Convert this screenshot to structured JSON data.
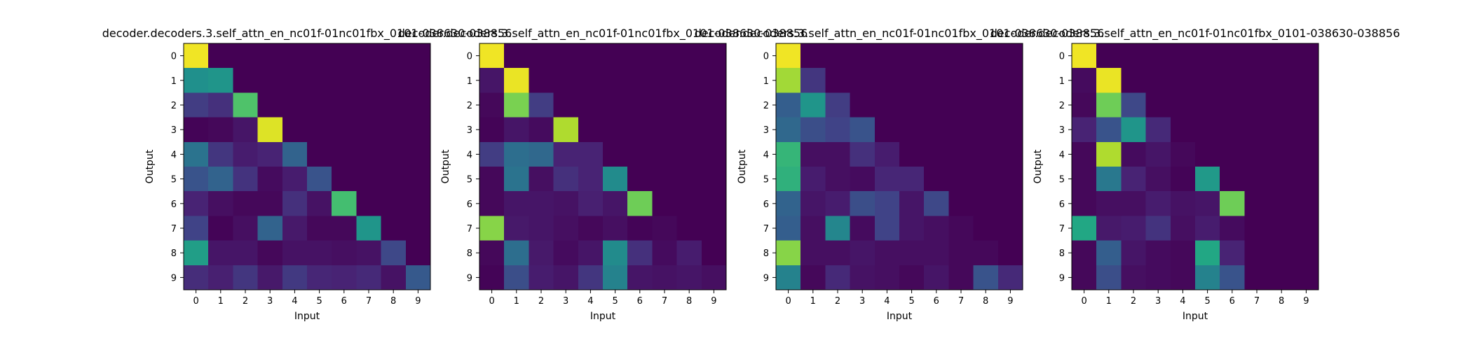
{
  "figure": {
    "background": "#ffffff"
  },
  "chart_data": [
    {
      "type": "heatmap",
      "title": "decoder.decoders.3.self_attn_en_nc01f-01nc01fbx_0101-038630-038856",
      "xlabel": "Input",
      "ylabel": "Output",
      "x_ticks": [
        "0",
        "1",
        "2",
        "3",
        "4",
        "5",
        "6",
        "7",
        "8",
        "9"
      ],
      "y_ticks": [
        "0",
        "1",
        "2",
        "3",
        "4",
        "5",
        "6",
        "7",
        "8",
        "9"
      ],
      "colormap": "viridis",
      "values": [
        [
          0.98,
          0,
          0,
          0,
          0,
          0,
          0,
          0,
          0,
          0
        ],
        [
          0.5,
          0.52,
          0,
          0,
          0,
          0,
          0,
          0,
          0,
          0
        ],
        [
          0.18,
          0.14,
          0.72,
          0,
          0,
          0,
          0,
          0,
          0,
          0
        ],
        [
          0.01,
          0.02,
          0.06,
          0.95,
          0,
          0,
          0,
          0,
          0,
          0
        ],
        [
          0.38,
          0.16,
          0.08,
          0.1,
          0.32,
          0,
          0,
          0,
          0,
          0
        ],
        [
          0.26,
          0.32,
          0.15,
          0.03,
          0.08,
          0.26,
          0,
          0,
          0,
          0
        ],
        [
          0.1,
          0.04,
          0.02,
          0.02,
          0.14,
          0.05,
          0.7,
          0,
          0,
          0
        ],
        [
          0.2,
          0.01,
          0.04,
          0.32,
          0.07,
          0.02,
          0.02,
          0.52,
          0,
          0
        ],
        [
          0.56,
          0.06,
          0.06,
          0.02,
          0.05,
          0.05,
          0.04,
          0.05,
          0.22,
          0
        ],
        [
          0.13,
          0.09,
          0.16,
          0.07,
          0.17,
          0.11,
          0.1,
          0.12,
          0.05,
          0.28
        ]
      ]
    },
    {
      "type": "heatmap",
      "title": "decoder.decoders.3.self_attn_en_nc01f-01nc01fbx_0101-038630-038856",
      "xlabel": "Input",
      "ylabel": "Output",
      "x_ticks": [
        "0",
        "1",
        "2",
        "3",
        "4",
        "5",
        "6",
        "7",
        "8",
        "9"
      ],
      "y_ticks": [
        "0",
        "1",
        "2",
        "3",
        "4",
        "5",
        "6",
        "7",
        "8",
        "9"
      ],
      "colormap": "viridis",
      "values": [
        [
          0.98,
          0,
          0,
          0,
          0,
          0,
          0,
          0,
          0,
          0
        ],
        [
          0.06,
          0.97,
          0,
          0,
          0,
          0,
          0,
          0,
          0,
          0
        ],
        [
          0.02,
          0.8,
          0.18,
          0,
          0,
          0,
          0,
          0,
          0,
          0
        ],
        [
          0.01,
          0.06,
          0.03,
          0.88,
          0,
          0,
          0,
          0,
          0,
          0
        ],
        [
          0.18,
          0.36,
          0.34,
          0.1,
          0.1,
          0,
          0,
          0,
          0,
          0
        ],
        [
          0.02,
          0.38,
          0.04,
          0.14,
          0.1,
          0.48,
          0,
          0,
          0,
          0
        ],
        [
          0.02,
          0.06,
          0.06,
          0.05,
          0.09,
          0.06,
          0.78,
          0,
          0,
          0
        ],
        [
          0.82,
          0.07,
          0.06,
          0.04,
          0.02,
          0.04,
          0.01,
          0.02,
          0,
          0
        ],
        [
          0.02,
          0.36,
          0.07,
          0.03,
          0.06,
          0.48,
          0.14,
          0.03,
          0.08,
          0
        ],
        [
          0.01,
          0.24,
          0.08,
          0.06,
          0.16,
          0.44,
          0.06,
          0.05,
          0.06,
          0.04
        ]
      ]
    },
    {
      "type": "heatmap",
      "title": "decoder.decoders.3.self_attn_en_nc01f-01nc01fbx_0101-038630-038856",
      "xlabel": "Input",
      "ylabel": "Output",
      "x_ticks": [
        "0",
        "1",
        "2",
        "3",
        "4",
        "5",
        "6",
        "7",
        "8",
        "9"
      ],
      "y_ticks": [
        "0",
        "1",
        "2",
        "3",
        "4",
        "5",
        "6",
        "7",
        "8",
        "9"
      ],
      "colormap": "viridis",
      "values": [
        [
          0.98,
          0,
          0,
          0,
          0,
          0,
          0,
          0,
          0,
          0
        ],
        [
          0.86,
          0.16,
          0,
          0,
          0,
          0,
          0,
          0,
          0,
          0
        ],
        [
          0.3,
          0.52,
          0.18,
          0,
          0,
          0,
          0,
          0,
          0,
          0
        ],
        [
          0.34,
          0.24,
          0.2,
          0.26,
          0,
          0,
          0,
          0,
          0,
          0
        ],
        [
          0.66,
          0.04,
          0.04,
          0.14,
          0.08,
          0,
          0,
          0,
          0,
          0
        ],
        [
          0.64,
          0.08,
          0.04,
          0.03,
          0.11,
          0.11,
          0,
          0,
          0,
          0
        ],
        [
          0.32,
          0.06,
          0.08,
          0.24,
          0.2,
          0.06,
          0.22,
          0,
          0,
          0
        ],
        [
          0.3,
          0.04,
          0.46,
          0.03,
          0.2,
          0.06,
          0.04,
          0.02,
          0,
          0
        ],
        [
          0.82,
          0.04,
          0.04,
          0.06,
          0.04,
          0.04,
          0.04,
          0.02,
          0.02,
          0
        ],
        [
          0.44,
          0.02,
          0.12,
          0.05,
          0.04,
          0.02,
          0.06,
          0.02,
          0.26,
          0.12
        ]
      ]
    },
    {
      "type": "heatmap",
      "title": "decoder.decoders.3.self_attn_en_nc01f-01nc01fbx_0101-038630-038856",
      "xlabel": "Input",
      "ylabel": "Output",
      "x_ticks": [
        "0",
        "1",
        "2",
        "3",
        "4",
        "5",
        "6",
        "7",
        "8",
        "9"
      ],
      "y_ticks": [
        "0",
        "1",
        "2",
        "3",
        "4",
        "5",
        "6",
        "7",
        "8",
        "9"
      ],
      "colormap": "viridis",
      "values": [
        [
          0.98,
          0,
          0,
          0,
          0,
          0,
          0,
          0,
          0,
          0
        ],
        [
          0.03,
          0.97,
          0,
          0,
          0,
          0,
          0,
          0,
          0,
          0
        ],
        [
          0.02,
          0.78,
          0.22,
          0,
          0,
          0,
          0,
          0,
          0,
          0
        ],
        [
          0.1,
          0.26,
          0.52,
          0.12,
          0,
          0,
          0,
          0,
          0,
          0
        ],
        [
          0.02,
          0.88,
          0.03,
          0.06,
          0.02,
          0,
          0,
          0,
          0,
          0
        ],
        [
          0.02,
          0.4,
          0.1,
          0.04,
          0.01,
          0.54,
          0,
          0,
          0,
          0
        ],
        [
          0.02,
          0.04,
          0.04,
          0.08,
          0.05,
          0.06,
          0.78,
          0,
          0,
          0
        ],
        [
          0.6,
          0.07,
          0.08,
          0.15,
          0.04,
          0.08,
          0.03,
          0,
          0,
          0
        ],
        [
          0.02,
          0.3,
          0.06,
          0.03,
          0.02,
          0.6,
          0.1,
          0,
          0,
          0
        ],
        [
          0.02,
          0.24,
          0.04,
          0.03,
          0.02,
          0.44,
          0.26,
          0,
          0,
          0
        ]
      ]
    }
  ]
}
